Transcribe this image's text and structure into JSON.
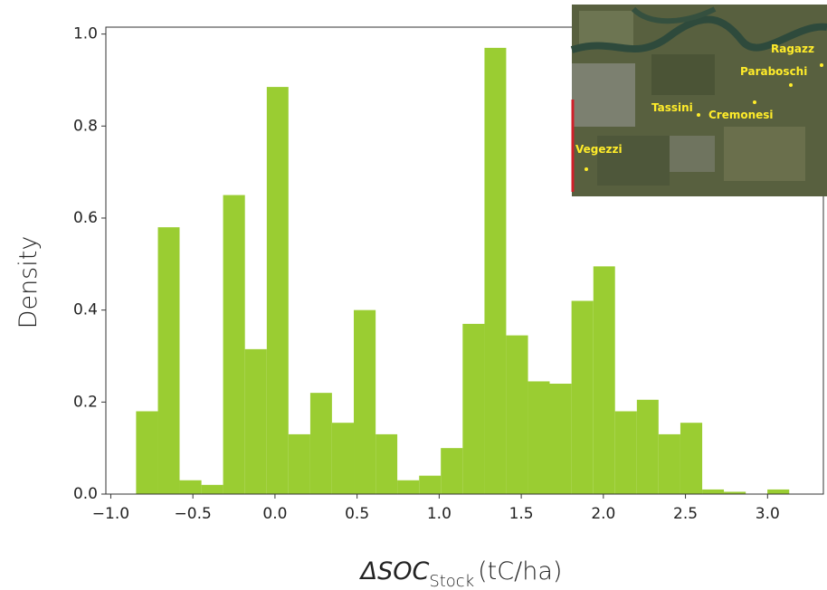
{
  "chart_data": {
    "type": "histogram",
    "ylabel": "Density",
    "xlabel": [
      "ΔSOC",
      "Stock",
      "(tC/ha)"
    ],
    "bins": [
      -0.846,
      -0.713,
      -0.581,
      -0.448,
      -0.316,
      -0.183,
      -0.05,
      0.082,
      0.215,
      0.347,
      0.48,
      0.613,
      0.745,
      0.878,
      1.01,
      1.143,
      1.276,
      1.408,
      1.541,
      1.673,
      1.806,
      1.939,
      2.071,
      2.204,
      2.336,
      2.469,
      2.602,
      2.734,
      2.867,
      2.999,
      3.132
    ],
    "values": [
      0.18,
      0.58,
      0.03,
      0.02,
      0.65,
      0.315,
      0.885,
      0.13,
      0.22,
      0.155,
      0.4,
      0.13,
      0.03,
      0.04,
      0.1,
      0.37,
      0.97,
      0.345,
      0.245,
      0.24,
      0.42,
      0.495,
      0.18,
      0.205,
      0.13,
      0.155,
      0.01,
      0.005,
      0,
      0.01
    ],
    "color": "#9acd32",
    "xlim": [
      -1.03,
      3.34
    ],
    "ylim": [
      0,
      1.015
    ],
    "xticks": [
      {
        "value": -1.0,
        "label": "−1.0"
      },
      {
        "value": -0.5,
        "label": "−0.5"
      },
      {
        "value": 0.0,
        "label": "0.0"
      },
      {
        "value": 0.5,
        "label": "0.5"
      },
      {
        "value": 1.0,
        "label": "1.0"
      },
      {
        "value": 1.5,
        "label": "1.5"
      },
      {
        "value": 2.0,
        "label": "2.0"
      },
      {
        "value": 2.5,
        "label": "2.5"
      },
      {
        "value": 3.0,
        "label": "3.0"
      }
    ],
    "yticks": [
      {
        "value": 0.0,
        "label": "0.0"
      },
      {
        "value": 0.2,
        "label": "0.2"
      },
      {
        "value": 0.4,
        "label": "0.4"
      },
      {
        "value": 0.6,
        "label": "0.6"
      },
      {
        "value": 0.8,
        "label": "0.8"
      },
      {
        "value": 1.0,
        "label": "1.0"
      }
    ]
  },
  "inset_map": {
    "labels": [
      "Ragazz",
      "Paraboschi",
      "Tassini",
      "Cremonesi",
      "Vegezzi"
    ]
  }
}
